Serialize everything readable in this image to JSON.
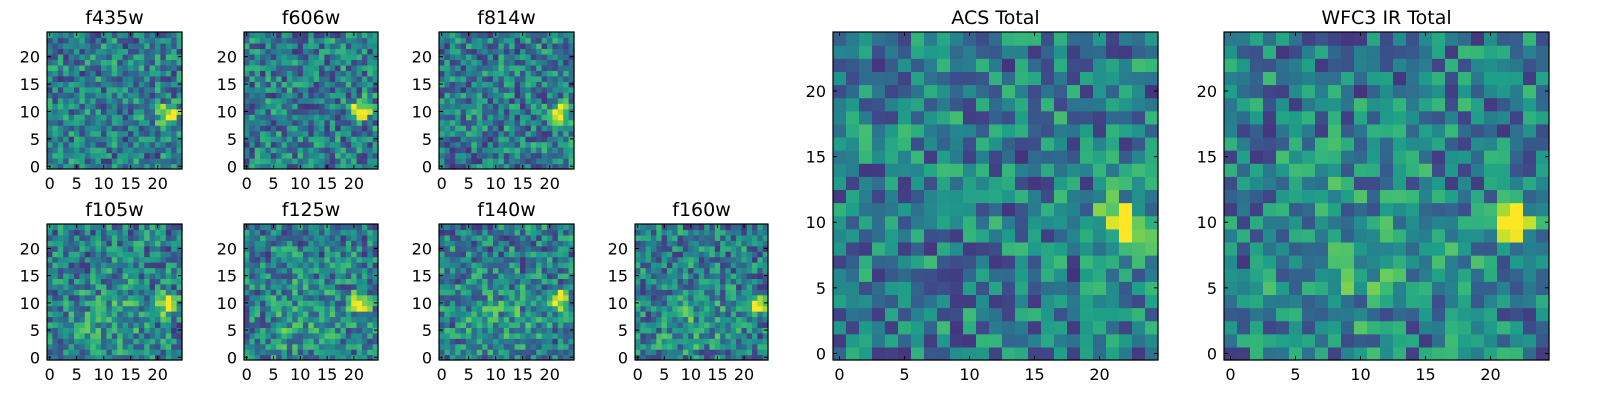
{
  "chart_data": [
    {
      "type": "heatmap",
      "title": "f435w",
      "x_ticks": [
        0,
        5,
        10,
        15,
        20
      ],
      "y_ticks": [
        0,
        5,
        10,
        15,
        20
      ],
      "xlim": [
        0,
        25
      ],
      "ylim": [
        0,
        25
      ],
      "grid_size": 25,
      "colormap": "viridis",
      "bright_source": {
        "x": 22,
        "y": 9.5,
        "amplitude": 1.0
      },
      "extended_emission": false,
      "noise_seed": 3
    },
    {
      "type": "heatmap",
      "title": "f606w",
      "x_ticks": [
        0,
        5,
        10,
        15,
        20
      ],
      "y_ticks": [
        0,
        5,
        10,
        15,
        20
      ],
      "xlim": [
        0,
        25
      ],
      "ylim": [
        0,
        25
      ],
      "grid_size": 25,
      "colormap": "viridis",
      "bright_source": {
        "x": 21.5,
        "y": 10.5,
        "amplitude": 1.0
      },
      "extended_emission": false,
      "noise_seed": 7
    },
    {
      "type": "heatmap",
      "title": "f814w",
      "x_ticks": [
        0,
        5,
        10,
        15,
        20
      ],
      "y_ticks": [
        0,
        5,
        10,
        15,
        20
      ],
      "xlim": [
        0,
        25
      ],
      "ylim": [
        0,
        25
      ],
      "grid_size": 25,
      "colormap": "viridis",
      "bright_source": {
        "x": 22,
        "y": 10,
        "amplitude": 1.0
      },
      "extended_emission": false,
      "noise_seed": 11
    },
    {
      "type": "heatmap",
      "title": "f105w",
      "x_ticks": [
        0,
        5,
        10,
        15,
        20
      ],
      "y_ticks": [
        0,
        5,
        10,
        15,
        20
      ],
      "xlim": [
        0,
        25
      ],
      "ylim": [
        0,
        25
      ],
      "grid_size": 25,
      "colormap": "viridis",
      "bright_source": {
        "x": 21.5,
        "y": 10,
        "amplitude": 1.0
      },
      "extended_emission": true,
      "noise_seed": 13
    },
    {
      "type": "heatmap",
      "title": "f125w",
      "x_ticks": [
        0,
        5,
        10,
        15,
        20
      ],
      "y_ticks": [
        0,
        5,
        10,
        15,
        20
      ],
      "xlim": [
        0,
        25
      ],
      "ylim": [
        0,
        25
      ],
      "grid_size": 25,
      "colormap": "viridis",
      "bright_source": {
        "x": 21,
        "y": 10,
        "amplitude": 1.0
      },
      "extended_emission": true,
      "noise_seed": 17
    },
    {
      "type": "heatmap",
      "title": "f140w",
      "x_ticks": [
        0,
        5,
        10,
        15,
        20
      ],
      "y_ticks": [
        0,
        5,
        10,
        15,
        20
      ],
      "xlim": [
        0,
        25
      ],
      "ylim": [
        0,
        25
      ],
      "grid_size": 25,
      "colormap": "viridis",
      "bright_source": {
        "x": 21.5,
        "y": 10.5,
        "amplitude": 1.0
      },
      "extended_emission": true,
      "noise_seed": 19
    },
    {
      "type": "heatmap",
      "title": "f160w",
      "x_ticks": [
        0,
        5,
        10,
        15,
        20
      ],
      "y_ticks": [
        0,
        5,
        10,
        15,
        20
      ],
      "xlim": [
        0,
        25
      ],
      "ylim": [
        0,
        25
      ],
      "grid_size": 25,
      "colormap": "viridis",
      "bright_source": {
        "x": 22,
        "y": 9.5,
        "amplitude": 1.0
      },
      "extended_emission": true,
      "noise_seed": 23
    },
    {
      "type": "heatmap",
      "title": "ACS Total",
      "x_ticks": [
        0,
        5,
        10,
        15,
        20
      ],
      "y_ticks": [
        0,
        5,
        10,
        15,
        20
      ],
      "xlim": [
        0,
        25
      ],
      "ylim": [
        0,
        25
      ],
      "grid_size": 25,
      "colormap": "viridis",
      "bright_source": {
        "x": 22,
        "y": 10,
        "amplitude": 1.0
      },
      "extended_emission": false,
      "noise_seed": 29
    },
    {
      "type": "heatmap",
      "title": "WFC3 IR Total",
      "x_ticks": [
        0,
        5,
        10,
        15,
        20
      ],
      "y_ticks": [
        0,
        5,
        10,
        15,
        20
      ],
      "xlim": [
        0,
        25
      ],
      "ylim": [
        0,
        25
      ],
      "grid_size": 25,
      "colormap": "viridis",
      "bright_source": {
        "x": 21.5,
        "y": 10,
        "amplitude": 1.0
      },
      "extended_emission": true,
      "noise_seed": 31
    }
  ]
}
